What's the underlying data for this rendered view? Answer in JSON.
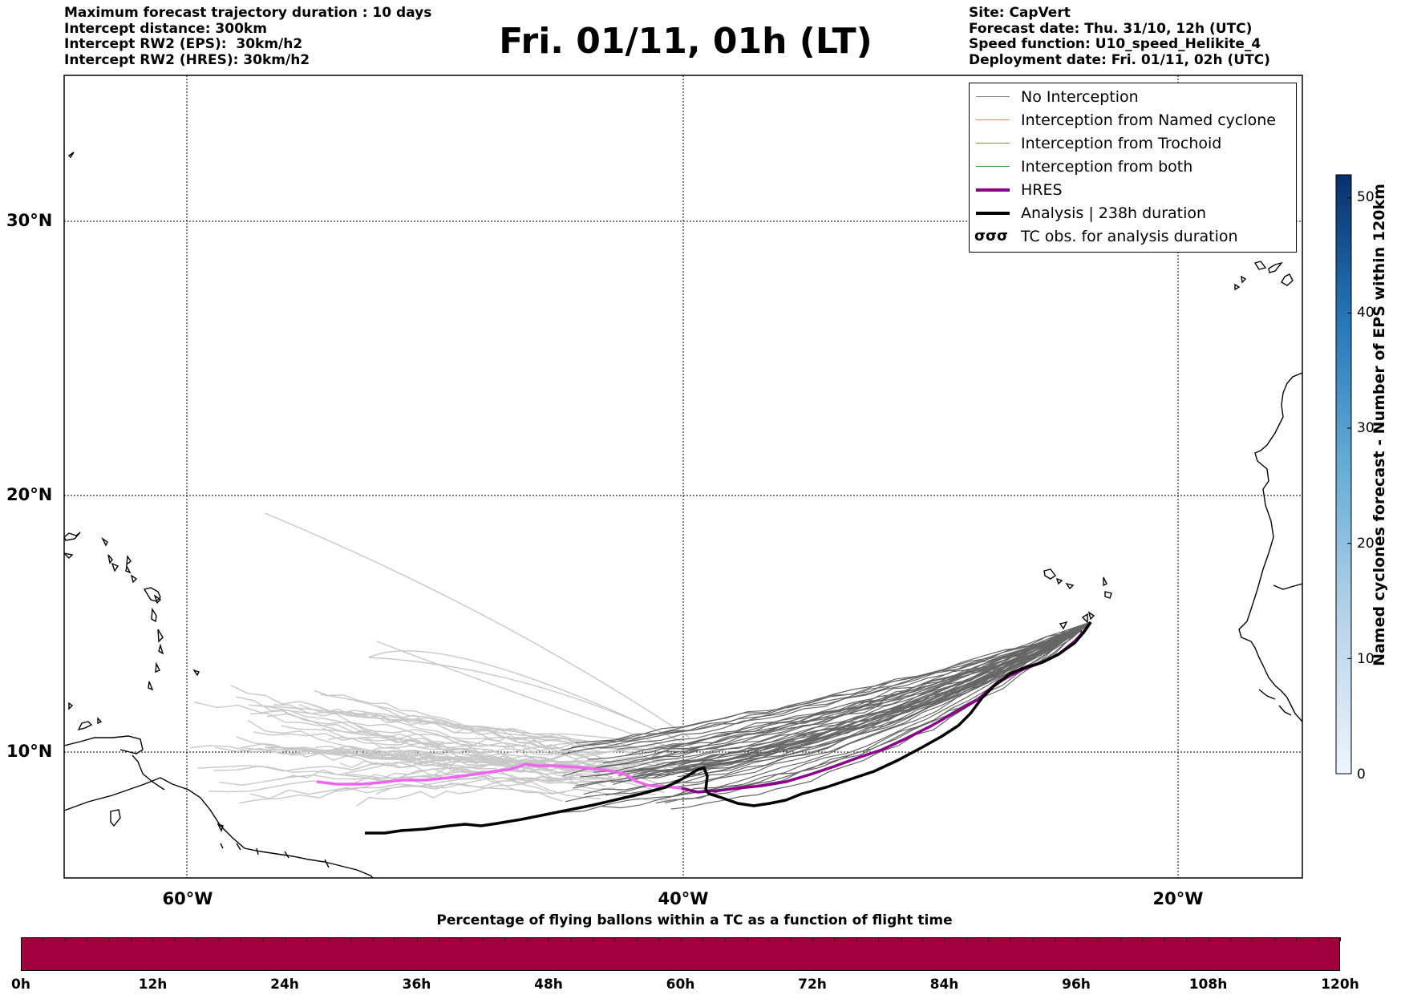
{
  "header_left": {
    "line1": "Maximum forecast trajectory duration : 10 days",
    "line2": "Intercept distance: 300km",
    "line3": "Intercept RW2 (EPS):  30km/h2",
    "line4": "Intercept RW2 (HRES): 30km/h2"
  },
  "title": "Fri. 01/11, 01h (LT)",
  "header_right": {
    "site": "Site: CapVert",
    "forecast_date": "Forecast date: Thu. 31/10, 12h (UTC)",
    "speed_function": "Speed function: U10_speed_Helikite_4",
    "deployment_date": "Deployment date: Fri. 01/11, 02h (UTC)"
  },
  "legend": [
    {
      "label": "No Interception",
      "color": "#808080",
      "style": "thin"
    },
    {
      "label": "Interception from Named cyclone",
      "color": "#ff7f50",
      "style": "thin"
    },
    {
      "label": "Interception from Trochoid",
      "color": "#8b8b3a",
      "style": "thin"
    },
    {
      "label": "Interception from both",
      "color": "#2ca02c",
      "style": "thin"
    },
    {
      "label": "HRES",
      "color": "#8b008b",
      "style": "thick"
    },
    {
      "label": "Analysis | 238h duration",
      "color": "#000000",
      "style": "thick"
    },
    {
      "label": "TC obs. for analysis duration",
      "color": "#000000",
      "style": "symbol",
      "symbol": "σσσ"
    }
  ],
  "axes": {
    "lat_labels": [
      "30°N",
      "20°N",
      "10°N"
    ],
    "lon_labels": [
      "60°W",
      "40°W",
      "20°W"
    ]
  },
  "colorbar": {
    "label": "Named cyclones forecast - Number of EPS within 120km",
    "ticks": [
      "50",
      "40",
      "30",
      "20",
      "10",
      "0"
    ],
    "range": [
      0,
      52
    ],
    "color_low": "#e8f0fa",
    "color_high": "#08306b"
  },
  "bottom_bar": {
    "title": "Percentage of flying ballons within a TC as a function of flight time",
    "color": "#a0003c",
    "ticks": [
      "0h",
      "12h",
      "24h",
      "36h",
      "48h",
      "60h",
      "72h",
      "84h",
      "96h",
      "108h",
      "120h"
    ]
  },
  "map_data": {
    "extent_lon": [
      -65,
      -15
    ],
    "extent_lat": [
      5.5,
      34.8
    ],
    "launch_site": {
      "lon": -23.7,
      "lat": 15.0
    },
    "hres_color": "#8b008b",
    "hres_west_color": "#ee66ee",
    "analysis_color": "#000000",
    "eps_color": "#666666",
    "eps_far_color": "#c8c8c8"
  }
}
